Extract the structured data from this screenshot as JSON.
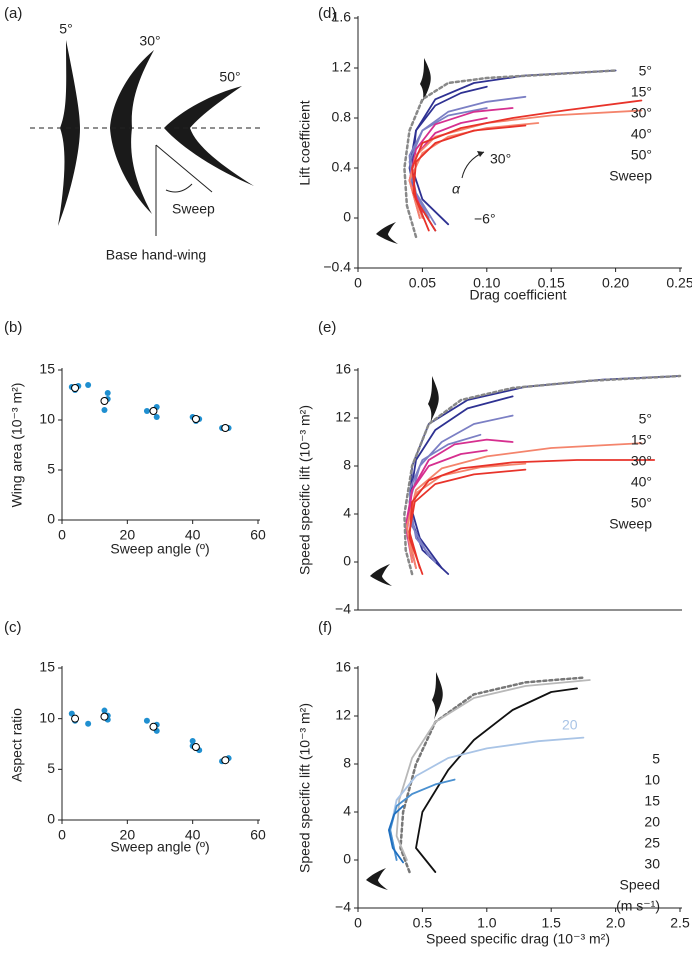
{
  "chart_data": [
    {
      "type": "diagram",
      "panel": "(a)",
      "angles": [
        "5°",
        "30°",
        "50°"
      ],
      "annotations": [
        "Sweep",
        "Base hand-wing"
      ]
    },
    {
      "type": "scatter",
      "panel": "(b)",
      "xlabel": "Sweep angle (º)",
      "ylabel": "Wing area (10⁻³ m²)",
      "xlim": [
        0,
        60
      ],
      "xticks": [
        0,
        20,
        40,
        60
      ],
      "ylim": [
        0,
        15
      ],
      "yticks": [
        0,
        5,
        10,
        15
      ],
      "series": [
        {
          "marker": "dot",
          "color": "#1f8fd0",
          "x": [
            3,
            4,
            5,
            8,
            13,
            14,
            14,
            26,
            29,
            29,
            40,
            41,
            42,
            49,
            51
          ],
          "values": [
            13.3,
            13.0,
            13.4,
            13.5,
            11.0,
            12.7,
            12.1,
            10.9,
            10.3,
            11.3,
            10.3,
            9.9,
            10.1,
            9.2,
            9.2
          ]
        },
        {
          "marker": "open",
          "color": "#000000",
          "x": [
            4,
            13,
            28,
            41,
            50
          ],
          "values": [
            13.2,
            11.9,
            10.9,
            10.1,
            9.2
          ]
        }
      ]
    },
    {
      "type": "scatter",
      "panel": "(c)",
      "xlabel": "Sweep angle (º)",
      "ylabel": "Aspect ratio",
      "xlim": [
        0,
        60
      ],
      "xticks": [
        0,
        20,
        40,
        60
      ],
      "ylim": [
        0,
        15
      ],
      "yticks": [
        0,
        5,
        10,
        15
      ],
      "series": [
        {
          "marker": "dot",
          "color": "#1f8fd0",
          "x": [
            3,
            4,
            8,
            13,
            14,
            14,
            26,
            29,
            29,
            40,
            40,
            42,
            49,
            51
          ],
          "values": [
            10.5,
            9.8,
            9.5,
            10.8,
            10.3,
            9.9,
            9.8,
            9.4,
            8.8,
            7.8,
            7.3,
            6.9,
            5.8,
            6.1
          ]
        },
        {
          "marker": "open",
          "color": "#000000",
          "x": [
            4,
            13,
            28,
            41,
            50
          ],
          "values": [
            10.0,
            10.2,
            9.2,
            7.2,
            5.9
          ]
        }
      ]
    },
    {
      "type": "line",
      "panel": "(d)",
      "xlabel": "Drag coefficient",
      "ylabel": "Lift coefficient",
      "xlim": [
        0,
        0.25
      ],
      "xticks": [
        0,
        0.05,
        {
          "value": 0.1,
          "label": "0.10"
        },
        0.15,
        {
          "value": 0.2,
          "label": "0.20"
        },
        0.25
      ],
      "ylim": [
        -0.4,
        1.6
      ],
      "yticks": [
        {
          "value": -0.4,
          "label": "−0.4"
        },
        0,
        0.4,
        0.8,
        1.2,
        1.6
      ],
      "annotations": [
        "30°",
        "α",
        "−6°"
      ],
      "legend": "right",
      "legend_title": [
        "Sweep"
      ],
      "legend_title_color": "#e8332a",
      "series": [
        {
          "name": "5°",
          "color": "#2e3192",
          "curves": [
            {
              "x": [
                0.07,
                0.05,
                0.042,
                0.045,
                0.06,
                0.09,
                0.13,
                0.2
              ],
              "values": [
                -0.05,
                0.15,
                0.4,
                0.7,
                0.95,
                1.08,
                1.14,
                1.18
              ]
            },
            {
              "x": [
                0.06,
                0.045,
                0.04,
                0.045,
                0.06,
                0.08,
                0.1
              ],
              "values": [
                -0.1,
                0.15,
                0.4,
                0.7,
                0.9,
                1.0,
                1.05
              ]
            }
          ]
        },
        {
          "name": "15°",
          "color": "#7b7fc4",
          "curves": [
            {
              "x": [
                0.06,
                0.045,
                0.04,
                0.05,
                0.07,
                0.1,
                0.13
              ],
              "values": [
                -0.05,
                0.2,
                0.45,
                0.7,
                0.85,
                0.93,
                0.97
              ]
            },
            {
              "x": [
                0.055,
                0.042,
                0.04,
                0.05,
                0.07,
                0.1
              ],
              "values": [
                0,
                0.25,
                0.5,
                0.7,
                0.82,
                0.88
              ]
            }
          ]
        },
        {
          "name": "30°",
          "color": "#d62f8f",
          "curves": [
            {
              "x": [
                0.05,
                0.04,
                0.045,
                0.06,
                0.09,
                0.12
              ],
              "values": [
                0.05,
                0.3,
                0.55,
                0.75,
                0.85,
                0.88
              ]
            },
            {
              "x": [
                0.048,
                0.04,
                0.045,
                0.06,
                0.08,
                0.1
              ],
              "values": [
                0,
                0.3,
                0.5,
                0.68,
                0.76,
                0.8
              ]
            }
          ]
        },
        {
          "name": "40°",
          "color": "#f4846c",
          "curves": [
            {
              "x": [
                0.05,
                0.04,
                0.045,
                0.06,
                0.1,
                0.15,
                0.22
              ],
              "values": [
                0,
                0.3,
                0.5,
                0.65,
                0.76,
                0.82,
                0.86
              ]
            },
            {
              "x": [
                0.048,
                0.04,
                0.05,
                0.07,
                0.1,
                0.14
              ],
              "values": [
                0,
                0.3,
                0.52,
                0.65,
                0.72,
                0.76
              ]
            }
          ]
        },
        {
          "name": "50°",
          "color": "#e8332a",
          "curves": [
            {
              "x": [
                0.06,
                0.045,
                0.042,
                0.05,
                0.08,
                0.12,
                0.16,
                0.22
              ],
              "values": [
                -0.1,
                0.15,
                0.4,
                0.6,
                0.72,
                0.8,
                0.86,
                0.94
              ]
            },
            {
              "x": [
                0.055,
                0.043,
                0.045,
                0.06,
                0.09,
                0.13
              ],
              "values": [
                -0.1,
                0.2,
                0.45,
                0.6,
                0.7,
                0.74
              ]
            }
          ]
        },
        {
          "color": "#888888",
          "dash": true,
          "curves": [
            {
              "x": [
                0.045,
                0.038,
                0.036,
                0.04,
                0.05,
                0.07,
                0.1,
                0.15,
                0.2
              ],
              "values": [
                -0.15,
                0.1,
                0.4,
                0.7,
                0.95,
                1.08,
                1.12,
                1.15,
                1.18
              ]
            }
          ]
        }
      ]
    },
    {
      "type": "line",
      "panel": "(e)",
      "ylabel": "Speed specific lift (10⁻³ m²)",
      "xlim": [
        0,
        2.5
      ],
      "ylim": [
        -4,
        16
      ],
      "yticks": [
        {
          "value": -4,
          "label": "−4"
        },
        0,
        4,
        8,
        12,
        16
      ],
      "legend": "right",
      "legend_title": [
        "Sweep"
      ],
      "legend_title_color": "#e8332a",
      "series": [
        {
          "name": "5°",
          "color": "#2e3192",
          "curves": [
            {
              "x": [
                0.7,
                0.5,
                0.4,
                0.42,
                0.55,
                0.85,
                1.3,
                1.9,
                2.5
              ],
              "values": [
                -1,
                1,
                4,
                8,
                11.5,
                13.5,
                14.6,
                15.2,
                15.5
              ]
            },
            {
              "x": [
                0.65,
                0.48,
                0.4,
                0.45,
                0.6,
                0.85,
                1.2
              ],
              "values": [
                -0.5,
                2,
                5,
                8.5,
                11,
                12.8,
                13.8
              ]
            }
          ]
        },
        {
          "name": "15°",
          "color": "#7b7fc4",
          "curves": [
            {
              "x": [
                0.6,
                0.45,
                0.4,
                0.48,
                0.65,
                0.9,
                1.2
              ],
              "values": [
                0,
                2,
                5,
                8,
                10,
                11.5,
                12.2
              ]
            },
            {
              "x": [
                0.55,
                0.42,
                0.4,
                0.5,
                0.7,
                0.95
              ],
              "values": [
                0.5,
                3,
                6,
                8.5,
                9.8,
                10.6
              ]
            }
          ]
        },
        {
          "name": "30°",
          "color": "#d62f8f",
          "curves": [
            {
              "x": [
                0.45,
                0.38,
                0.42,
                0.55,
                0.75,
                1.0,
                1.2
              ],
              "values": [
                -0.5,
                2.5,
                6,
                8.5,
                9.8,
                10.2,
                10
              ]
            },
            {
              "x": [
                0.42,
                0.37,
                0.42,
                0.55,
                0.8,
                1.0
              ],
              "values": [
                0,
                3,
                6,
                8,
                9,
                9.3
              ]
            }
          ]
        },
        {
          "name": "40°",
          "color": "#f4846c",
          "curves": [
            {
              "x": [
                0.45,
                0.38,
                0.45,
                0.65,
                1.0,
                1.5,
                2.2
              ],
              "values": [
                -0.5,
                3,
                6,
                7.8,
                8.8,
                9.5,
                9.9
              ]
            },
            {
              "x": [
                0.42,
                0.38,
                0.46,
                0.65,
                0.95,
                1.3
              ],
              "values": [
                0,
                3,
                5.8,
                7.2,
                7.9,
                8.2
              ]
            }
          ]
        },
        {
          "name": "50°",
          "color": "#e8332a",
          "curves": [
            {
              "x": [
                0.5,
                0.4,
                0.42,
                0.55,
                0.8,
                1.2,
                1.7,
                2.3
              ],
              "values": [
                -1,
                2,
                5,
                6.8,
                7.8,
                8.3,
                8.5,
                8.5
              ]
            },
            {
              "x": [
                0.48,
                0.4,
                0.44,
                0.6,
                0.9,
                1.3
              ],
              "values": [
                -0.5,
                2.5,
                5,
                6.5,
                7.3,
                7.7
              ]
            }
          ]
        },
        {
          "color": "#888888",
          "dash": true,
          "curves": [
            {
              "x": [
                0.42,
                0.37,
                0.36,
                0.42,
                0.55,
                0.8,
                1.2,
                1.8,
                2.5
              ],
              "values": [
                -1,
                1,
                4,
                8,
                11.5,
                13.5,
                14.5,
                15.1,
                15.5
              ]
            }
          ]
        }
      ]
    },
    {
      "type": "line",
      "panel": "(f)",
      "xlabel": "Speed specific drag (10⁻³ m²)",
      "ylabel": "Speed specific lift (10⁻³ m²)",
      "xlim": [
        0,
        2.5
      ],
      "xticks": [
        0,
        0.5,
        {
          "value": 1,
          "label": "1.0"
        },
        1.5,
        {
          "value": 2,
          "label": "2.0"
        },
        2.5
      ],
      "ylim": [
        -4,
        16
      ],
      "yticks": [
        {
          "value": -4,
          "label": "−4"
        },
        0,
        4,
        8,
        12,
        16
      ],
      "annotations": [
        "20"
      ],
      "legend": "right",
      "legend_title": [
        "Speed",
        "(m s⁻¹)"
      ],
      "legend_title_color": "#1f6fbf",
      "series": [
        {
          "name": "5",
          "color": "#111111",
          "x": [
            0.6,
            0.45,
            0.5,
            0.7,
            0.9,
            1.2,
            1.5,
            1.7
          ],
          "values": [
            -1,
            1,
            4,
            7.5,
            10,
            12.5,
            14,
            14.3
          ]
        },
        {
          "name": "10",
          "color": "#777777",
          "dash": true,
          "x": [
            0.4,
            0.33,
            0.35,
            0.45,
            0.6,
            0.9,
            1.3,
            1.75
          ],
          "values": [
            -1,
            1,
            4,
            8,
            11.5,
            13.8,
            14.8,
            15.2
          ]
        },
        {
          "name": "15",
          "color": "#b8b8b8",
          "x": [
            0.38,
            0.3,
            0.32,
            0.42,
            0.6,
            0.9,
            1.3,
            1.8
          ],
          "values": [
            0,
            2,
            5,
            8.5,
            11.5,
            13.5,
            14.5,
            15
          ]
        },
        {
          "name": "20",
          "color": "#a9c4e6",
          "x": [
            0.3,
            0.25,
            0.3,
            0.45,
            0.7,
            1.0,
            1.4,
            1.75
          ],
          "values": [
            0,
            2.5,
            5,
            7,
            8.5,
            9.3,
            9.9,
            10.2
          ]
        },
        {
          "name": "25",
          "color": "#4a90d0",
          "x": [
            0.3,
            0.25,
            0.3,
            0.42,
            0.6,
            0.75
          ],
          "values": [
            0,
            2.5,
            4.5,
            5.5,
            6.3,
            6.7
          ]
        },
        {
          "name": "30",
          "color": "#1f6fbf",
          "x": [
            0.35,
            0.27,
            0.24,
            0.28,
            0.35
          ],
          "values": [
            -0.2,
            1,
            2.5,
            3.8,
            4.5
          ]
        }
      ]
    }
  ]
}
